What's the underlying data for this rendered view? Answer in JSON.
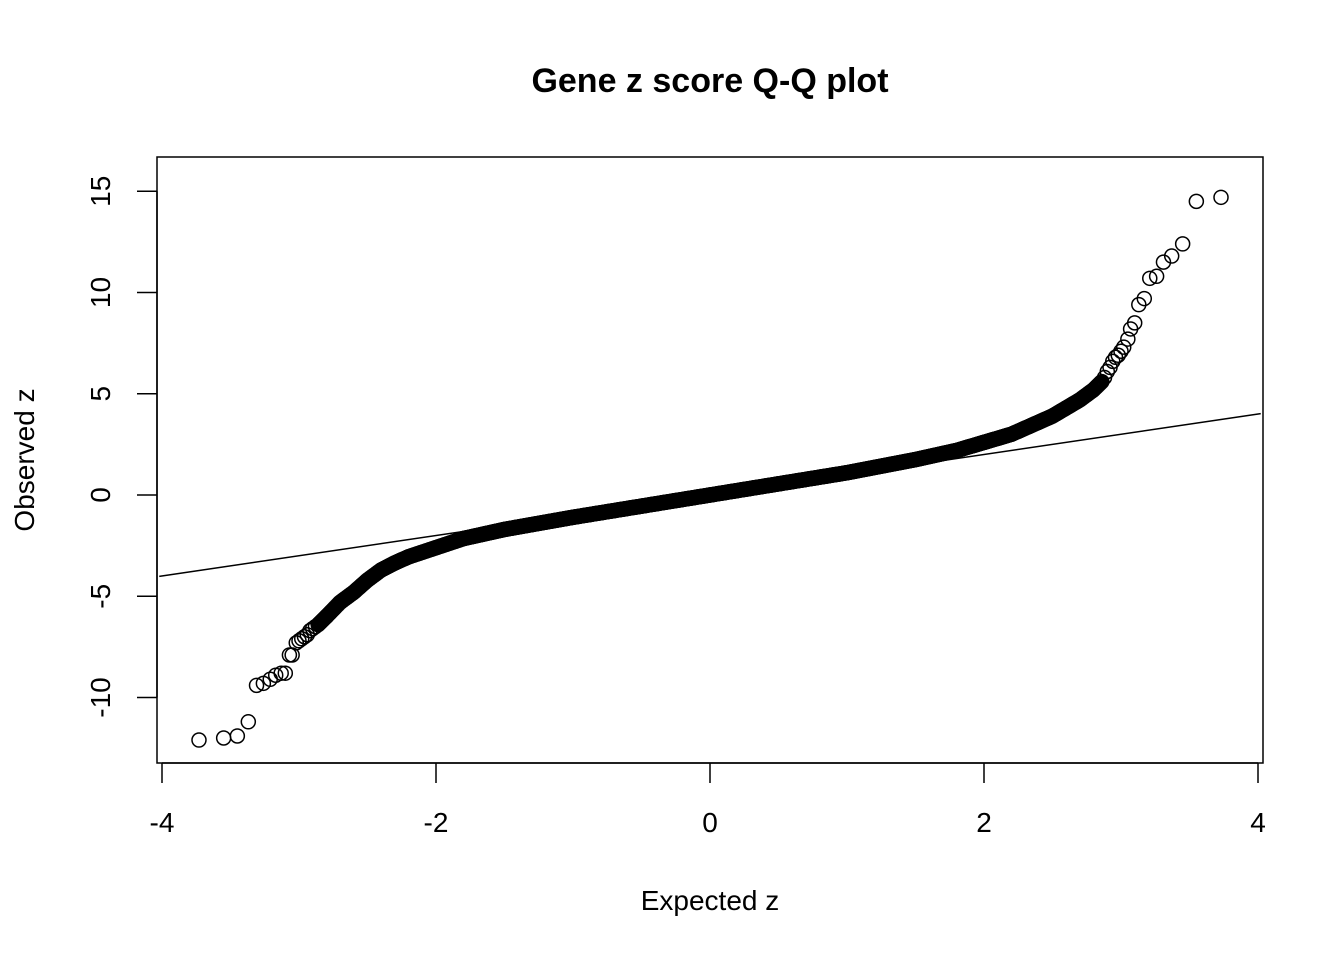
{
  "chart_data": {
    "type": "scatter",
    "title": "Gene z score Q-Q plot",
    "xlabel": "Expected z",
    "ylabel": "Observed z",
    "xlim": [
      -4,
      4
    ],
    "ylim": [
      -13,
      17
    ],
    "xticks": [
      -4,
      -2,
      0,
      2,
      4
    ],
    "xtick_labels": [
      "-4",
      "-2",
      "0",
      "2",
      "4"
    ],
    "yticks": [
      -10,
      -5,
      0,
      5,
      10,
      15
    ],
    "ytick_labels": [
      "-10",
      "-5",
      "0",
      "5",
      "10",
      "15"
    ],
    "grid": false,
    "reference_line": {
      "slope": 1,
      "intercept": 0
    },
    "tail_points": [
      {
        "x": 3.73,
        "y": 14.7
      },
      {
        "x": 3.55,
        "y": 14.5
      },
      {
        "x": 3.45,
        "y": 12.4
      },
      {
        "x": 3.37,
        "y": 11.8
      },
      {
        "x": 3.31,
        "y": 11.5
      },
      {
        "x": 3.26,
        "y": 10.8
      },
      {
        "x": 3.21,
        "y": 10.7
      },
      {
        "x": 3.17,
        "y": 9.7
      },
      {
        "x": 3.13,
        "y": 9.4
      },
      {
        "x": 3.1,
        "y": 8.5
      },
      {
        "x": 3.07,
        "y": 8.2
      },
      {
        "x": 3.05,
        "y": 7.7
      },
      {
        "x": 3.02,
        "y": 7.3
      },
      {
        "x": 3.0,
        "y": 7.1
      },
      {
        "x": 2.98,
        "y": 6.9
      },
      {
        "x": 2.96,
        "y": 6.8
      },
      {
        "x": 2.94,
        "y": 6.6
      },
      {
        "x": 2.92,
        "y": 6.3
      },
      {
        "x": 2.9,
        "y": 6.1
      },
      {
        "x": 2.88,
        "y": 5.8
      },
      {
        "x": -3.73,
        "y": -12.1
      },
      {
        "x": -3.55,
        "y": -12.0
      },
      {
        "x": -3.45,
        "y": -11.9
      },
      {
        "x": -3.37,
        "y": -11.2
      },
      {
        "x": -3.31,
        "y": -9.4
      },
      {
        "x": -3.26,
        "y": -9.3
      },
      {
        "x": -3.21,
        "y": -9.1
      },
      {
        "x": -3.17,
        "y": -8.9
      },
      {
        "x": -3.13,
        "y": -8.8
      },
      {
        "x": -3.1,
        "y": -8.8
      },
      {
        "x": -3.07,
        "y": -7.9
      },
      {
        "x": -3.05,
        "y": -7.9
      },
      {
        "x": -3.02,
        "y": -7.3
      },
      {
        "x": -3.0,
        "y": -7.2
      },
      {
        "x": -2.98,
        "y": -7.1
      },
      {
        "x": -2.96,
        "y": -7.0
      },
      {
        "x": -2.94,
        "y": -6.9
      },
      {
        "x": -2.92,
        "y": -6.7
      },
      {
        "x": -2.9,
        "y": -6.6
      },
      {
        "x": -2.88,
        "y": -6.5
      }
    ],
    "body_curve": [
      {
        "x": -2.86,
        "y": -6.4
      },
      {
        "x": -2.8,
        "y": -6.0
      },
      {
        "x": -2.7,
        "y": -5.3
      },
      {
        "x": -2.6,
        "y": -4.8
      },
      {
        "x": -2.5,
        "y": -4.2
      },
      {
        "x": -2.4,
        "y": -3.7
      },
      {
        "x": -2.3,
        "y": -3.35
      },
      {
        "x": -2.2,
        "y": -3.05
      },
      {
        "x": -2.0,
        "y": -2.6
      },
      {
        "x": -1.8,
        "y": -2.15
      },
      {
        "x": -1.5,
        "y": -1.7
      },
      {
        "x": -1.0,
        "y": -1.1
      },
      {
        "x": -0.5,
        "y": -0.55
      },
      {
        "x": 0.0,
        "y": 0.0
      },
      {
        "x": 0.5,
        "y": 0.55
      },
      {
        "x": 1.0,
        "y": 1.1
      },
      {
        "x": 1.5,
        "y": 1.75
      },
      {
        "x": 1.8,
        "y": 2.2
      },
      {
        "x": 2.0,
        "y": 2.6
      },
      {
        "x": 2.2,
        "y": 3.0
      },
      {
        "x": 2.3,
        "y": 3.3
      },
      {
        "x": 2.4,
        "y": 3.6
      },
      {
        "x": 2.5,
        "y": 3.9
      },
      {
        "x": 2.6,
        "y": 4.3
      },
      {
        "x": 2.7,
        "y": 4.7
      },
      {
        "x": 2.8,
        "y": 5.2
      },
      {
        "x": 2.86,
        "y": 5.6
      }
    ]
  }
}
